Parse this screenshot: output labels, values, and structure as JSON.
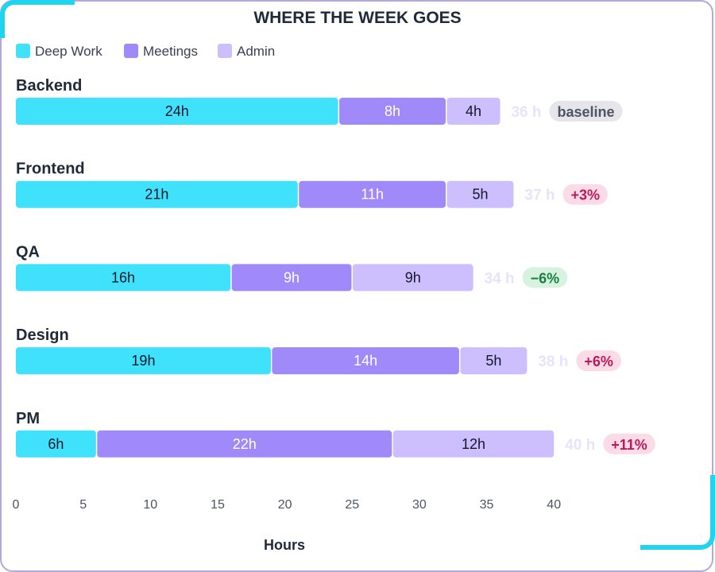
{
  "chart_data": {
    "type": "bar",
    "orientation": "horizontal",
    "stacked": true,
    "title": "WHERE THE WEEK GOES",
    "xlabel": "Hours",
    "ylabel": "",
    "xlim": [
      0,
      40
    ],
    "xticks": [
      0,
      5,
      10,
      15,
      20,
      25,
      30,
      35,
      40
    ],
    "grid": false,
    "legend_position": "top-left",
    "categories": [
      "Backend",
      "Frontend",
      "QA",
      "Design",
      "PM"
    ],
    "series": [
      {
        "name": "Deep Work",
        "color": "#3fe1fb",
        "text_color": "#0f172a",
        "values": [
          24,
          21,
          16,
          19,
          6
        ]
      },
      {
        "name": "Meetings",
        "color": "#a08afa",
        "text_color": "#ffffff",
        "values": [
          8,
          11,
          9,
          14,
          22
        ]
      },
      {
        "name": "Admin",
        "color": "#cdbffd",
        "text_color": "#111827",
        "values": [
          4,
          5,
          9,
          5,
          12
        ]
      }
    ],
    "segment_labels": [
      [
        "24h",
        "8h",
        "4h"
      ],
      [
        "21h",
        "11h",
        "5h"
      ],
      [
        "16h",
        "9h",
        "9h"
      ],
      [
        "19h",
        "14h",
        "5h"
      ],
      [
        "6h",
        "22h",
        "12h"
      ]
    ],
    "totals": [
      "36 h",
      "37 h",
      "34 h",
      "38 h",
      "40 h"
    ],
    "badges": [
      {
        "text": "baseline",
        "tone": "neutral"
      },
      {
        "text": "+3%",
        "tone": "up"
      },
      {
        "text": "−6%",
        "tone": "down"
      },
      {
        "text": "+6%",
        "tone": "up"
      },
      {
        "text": "+11%",
        "tone": "up"
      }
    ],
    "badge_colors": {
      "neutral": {
        "bg": "#e5e5ea",
        "fg": "#4b5563"
      },
      "up": {
        "bg": "#fbdbe6",
        "fg": "#be185d"
      },
      "down": {
        "bg": "#d7f2df",
        "fg": "#15803d"
      }
    },
    "total_color": "#e6e3fb",
    "accent_color": "#22d3ee"
  }
}
